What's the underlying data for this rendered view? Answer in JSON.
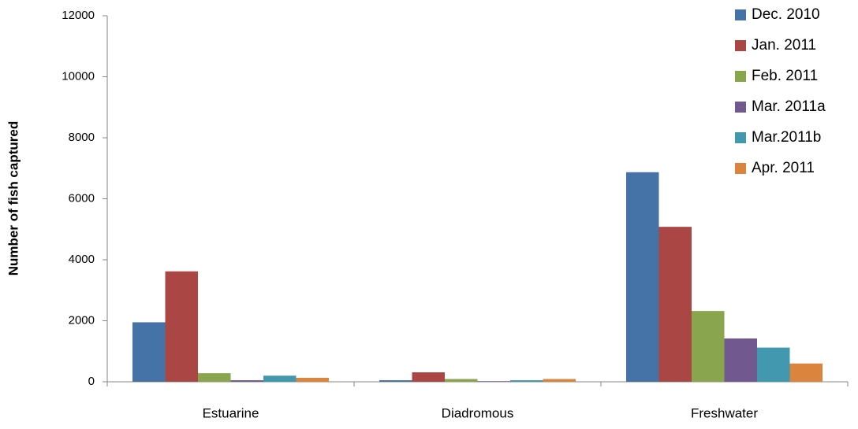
{
  "chart_data": {
    "type": "bar",
    "y_label": "Number of fish captured",
    "categories": [
      "Estuarine",
      "Diadromous",
      "Freshwater"
    ],
    "series": [
      {
        "name": "Dec. 2010",
        "color": "#4572a7",
        "values": [
          1950,
          50,
          6870
        ]
      },
      {
        "name": "Jan. 2011",
        "color": "#aa4643",
        "values": [
          3620,
          310,
          5080
        ]
      },
      {
        "name": "Feb. 2011",
        "color": "#89a54e",
        "values": [
          280,
          90,
          2320
        ]
      },
      {
        "name": "Mar. 2011a",
        "color": "#71588f",
        "values": [
          50,
          20,
          1420
        ]
      },
      {
        "name": "Mar.2011b",
        "color": "#4198af",
        "values": [
          200,
          50,
          1120
        ]
      },
      {
        "name": "Apr. 2011",
        "color": "#db843d",
        "values": [
          130,
          90,
          600
        ]
      }
    ],
    "ylim": [
      0,
      12000
    ],
    "yticks": [
      0,
      2000,
      4000,
      6000,
      8000,
      10000,
      12000
    ],
    "grid": false,
    "legend": "top-right"
  }
}
